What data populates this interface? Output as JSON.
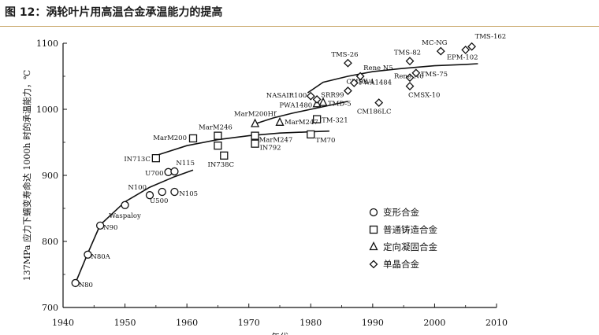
{
  "figure_title": "图 12：涡轮叶片用高温合金承温能力的提高",
  "chart_data": {
    "type": "scatter",
    "title": "",
    "xlabel": "年代",
    "ylabel": "137MPa 应力下蠕变寿命达 1000h 时的承温能力，℃",
    "xlim": [
      1940,
      2010
    ],
    "ylim": [
      700,
      1100
    ],
    "xticks": [
      1940,
      1950,
      1960,
      1970,
      1980,
      1990,
      2000,
      2010
    ],
    "yticks": [
      700,
      800,
      900,
      1000,
      1100
    ],
    "legend_position": "lower-right",
    "series": [
      {
        "name": "变形合金",
        "marker": "circle",
        "points": [
          {
            "label": "N80",
            "x": 1942,
            "y": 737
          },
          {
            "label": "N80A",
            "x": 1944,
            "y": 780
          },
          {
            "label": "N90",
            "x": 1946,
            "y": 824
          },
          {
            "label": "Waspaloy",
            "x": 1950,
            "y": 855
          },
          {
            "label": "N100",
            "x": 1954,
            "y": 870
          },
          {
            "label": "U500",
            "x": 1956,
            "y": 875
          },
          {
            "label": "N105",
            "x": 1958,
            "y": 875
          },
          {
            "label": "U700",
            "x": 1957,
            "y": 905
          },
          {
            "label": "N115",
            "x": 1958,
            "y": 906
          }
        ]
      },
      {
        "name": "普通铸造合金",
        "marker": "square",
        "points": [
          {
            "label": "IN713C",
            "x": 1955,
            "y": 926
          },
          {
            "label": "MarM200",
            "x": 1961,
            "y": 956
          },
          {
            "label": "MarM246",
            "x": 1965,
            "y": 960
          },
          {
            "label": "IN738C",
            "x": 1966,
            "y": 930
          },
          {
            "label": "",
            "x": 1965,
            "y": 945
          },
          {
            "label": "IN792",
            "x": 1971,
            "y": 948
          },
          {
            "label": "MarM247",
            "x": 1971,
            "y": 960
          },
          {
            "label": "TM70",
            "x": 1980,
            "y": 962
          },
          {
            "label": "TM-321",
            "x": 1981,
            "y": 985
          }
        ]
      },
      {
        "name": "定向凝固合金",
        "marker": "triangle",
        "points": [
          {
            "label": "MarM200Hf",
            "x": 1971,
            "y": 978
          },
          {
            "label": "MarM247",
            "x": 1975,
            "y": 980
          },
          {
            "label": "PWA1480",
            "x": 1981,
            "y": 1008
          },
          {
            "label": "TMD-5",
            "x": 1982,
            "y": 1010
          }
        ]
      },
      {
        "name": "单晶合金",
        "marker": "diamond",
        "points": [
          {
            "label": "NASAIR100",
            "x": 1980,
            "y": 1020
          },
          {
            "label": "SRR99",
            "x": 1981,
            "y": 1015
          },
          {
            "label": "CMSX-4",
            "x": 1986,
            "y": 1028
          },
          {
            "label": "PWA1484",
            "x": 1987,
            "y": 1040
          },
          {
            "label": "Rene N5",
            "x": 1988,
            "y": 1050
          },
          {
            "label": "TMS-26",
            "x": 1986,
            "y": 1070
          },
          {
            "label": "CM186LC",
            "x": 1991,
            "y": 1010
          },
          {
            "label": "Rene N6",
            "x": 1996,
            "y": 1048
          },
          {
            "label": "CMSX-10",
            "x": 1996,
            "y": 1035
          },
          {
            "label": "TMS-75",
            "x": 1997,
            "y": 1055
          },
          {
            "label": "TMS-82",
            "x": 1996,
            "y": 1073
          },
          {
            "label": "MC-NG",
            "x": 2001,
            "y": 1088
          },
          {
            "label": "EPM-102",
            "x": 2005,
            "y": 1090
          },
          {
            "label": "TMS-162",
            "x": 2006,
            "y": 1095
          }
        ]
      }
    ],
    "trend_lines": [
      {
        "x": [
          1942,
          1944,
          1946,
          1950,
          1954,
          1958,
          1961
        ],
        "y": [
          737,
          782,
          825,
          860,
          882,
          898,
          908
        ]
      },
      {
        "x": [
          1955,
          1960,
          1965,
          1970,
          1975,
          1980,
          1983
        ],
        "y": [
          930,
          945,
          954,
          960,
          964,
          966,
          967
        ]
      },
      {
        "x": [
          1971,
          1974,
          1977,
          1980,
          1983,
          1986
        ],
        "y": [
          978,
          987,
          994,
          1000,
          1006,
          1012
        ]
      },
      {
        "x": [
          1979.5,
          1982,
          1986,
          1990,
          1995,
          2000,
          2005,
          2007
        ],
        "y": [
          1025,
          1041,
          1050,
          1057,
          1062,
          1066,
          1068,
          1069
        ]
      }
    ]
  }
}
